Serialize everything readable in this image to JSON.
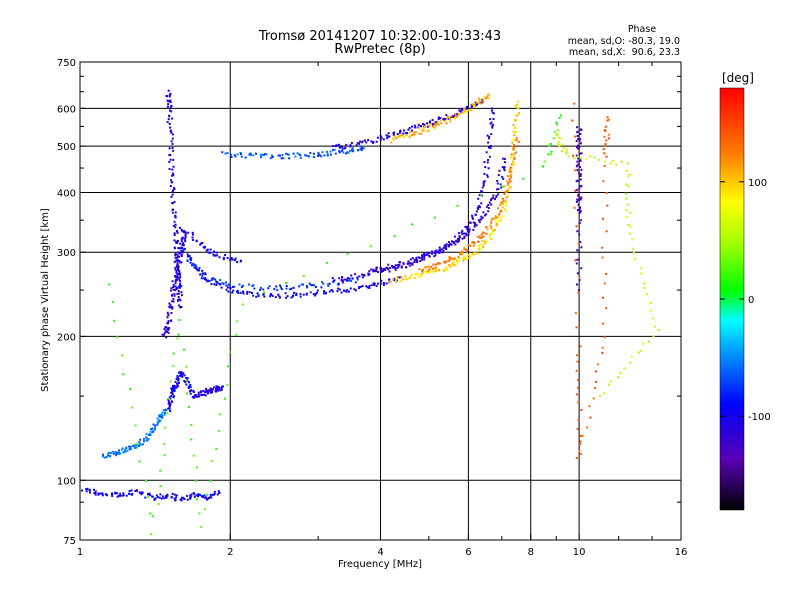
{
  "chart_data": {
    "type": "scatter",
    "title": "Tromsø 20141207 10:32:00-10:33:43",
    "subtitle": "RwPretec (8p)",
    "xlabel": "Frequency [MHz]",
    "ylabel": "Stationary phase Virtual Height [km]",
    "x_scale": "log",
    "y_scale": "log",
    "xlim": [
      1,
      16
    ],
    "ylim": [
      75,
      750
    ],
    "grid": true,
    "x_ticks": [
      1,
      2,
      4,
      6,
      8,
      10,
      16
    ],
    "x_tick_labels": [
      "1",
      "2",
      "4",
      "6",
      "8",
      "10",
      "16"
    ],
    "y_ticks": [
      75,
      100,
      200,
      300,
      400,
      500,
      600,
      750
    ],
    "y_tick_labels": [
      "75",
      "100",
      "200",
      "300",
      "400",
      "500",
      "600",
      "750"
    ],
    "phase_stats": {
      "heading": "Phase",
      "line_o": "mean, sd,O: -80.3, 19.0",
      "line_x": "mean, sd,X:  90.6, 23.3"
    },
    "colorbar": {
      "label": "[deg]",
      "range": [
        -180,
        180
      ],
      "ticks": [
        100,
        0,
        -100
      ],
      "tick_labels": [
        "100",
        "0",
        "-100"
      ],
      "colormap": "rainbow"
    },
    "traces": [
      {
        "x": [
          1.5,
          1.51,
          1.52,
          1.53,
          1.54,
          1.55,
          1.56,
          1.57,
          1.58,
          1.59
        ],
        "y": [
          650,
          600,
          520,
          440,
          380,
          330,
          300,
          270,
          250,
          230
        ],
        "phase": -105
      },
      {
        "x": [
          1.48,
          1.5,
          1.52,
          1.54,
          1.56,
          1.58,
          1.6,
          1.62
        ],
        "y": [
          200,
          210,
          230,
          250,
          270,
          290,
          310,
          330
        ],
        "phase": -110
      },
      {
        "x": [
          1.6,
          1.7,
          1.8,
          2.0,
          2.2,
          2.5,
          2.8,
          3.2,
          3.6,
          4.0,
          4.4
        ],
        "y": [
          310,
          280,
          262,
          250,
          245,
          243,
          245,
          248,
          252,
          258,
          266
        ],
        "phase": -95
      },
      {
        "x": [
          1.65,
          1.8,
          2.0,
          2.4,
          2.8,
          3.2,
          3.6
        ],
        "y": [
          290,
          265,
          255,
          252,
          254,
          258,
          263
        ],
        "phase": -75
      },
      {
        "x": [
          1.6,
          1.75,
          1.9,
          2.1
        ],
        "y": [
          340,
          310,
          295,
          288
        ],
        "phase": -100
      },
      {
        "x": [
          1.95,
          2.2,
          2.5,
          2.8,
          3.1,
          3.4,
          3.7
        ],
        "y": [
          480,
          478,
          476,
          478,
          482,
          488,
          495
        ],
        "phase": -65
      },
      {
        "x": [
          3.2,
          3.6,
          4.0,
          4.4,
          4.8,
          5.2,
          5.6,
          6.0,
          6.4
        ],
        "y": [
          495,
          505,
          520,
          535,
          550,
          565,
          580,
          600,
          625
        ],
        "phase": -105
      },
      {
        "x": [
          4.2,
          4.6,
          5.0,
          5.4,
          5.8,
          6.2,
          6.6
        ],
        "y": [
          515,
          530,
          545,
          565,
          585,
          610,
          640
        ],
        "phase": 105
      },
      {
        "x": [
          3.2,
          3.6,
          4.0,
          4.4,
          4.8,
          5.2,
          5.6,
          6.0,
          6.3,
          6.5,
          6.6,
          6.7
        ],
        "y": [
          262,
          268,
          274,
          280,
          290,
          300,
          318,
          340,
          375,
          430,
          520,
          600
        ],
        "phase": -110
      },
      {
        "x": [
          4.2,
          4.6,
          5.0,
          5.4,
          5.8,
          6.2,
          6.6,
          7.0,
          7.2,
          7.35,
          7.45,
          7.55
        ],
        "y": [
          262,
          266,
          272,
          278,
          288,
          300,
          322,
          355,
          400,
          460,
          540,
          620
        ],
        "phase": 95
      },
      {
        "x": [
          4.8,
          5.2,
          5.6,
          6.0,
          6.4,
          6.8,
          7.1,
          7.3,
          7.5
        ],
        "y": [
          275,
          282,
          292,
          305,
          325,
          355,
          395,
          445,
          520
        ],
        "phase": 125
      },
      {
        "x": [
          3.8,
          4.2,
          4.6,
          5.0,
          5.4,
          5.8,
          6.2,
          6.6,
          6.9,
          7.1
        ],
        "y": [
          275,
          280,
          288,
          296,
          306,
          320,
          340,
          370,
          410,
          470
        ],
        "phase": -115
      },
      {
        "x": [
          1.5,
          1.52,
          1.54,
          1.56,
          1.6,
          1.65,
          1.7
        ],
        "y": [
          140,
          148,
          155,
          160,
          168,
          158,
          150
        ],
        "phase": -100
      },
      {
        "x": [
          1.7,
          1.76,
          1.82,
          1.88,
          1.92
        ],
        "y": [
          150,
          152,
          154,
          155,
          156
        ],
        "phase": -110
      },
      {
        "x": [
          1.12,
          1.18,
          1.24,
          1.3,
          1.36,
          1.4,
          1.44,
          1.48
        ],
        "y": [
          112,
          114,
          116,
          118,
          122,
          128,
          134,
          140
        ],
        "phase": -55
      },
      {
        "x": [
          1.02,
          1.1,
          1.2,
          1.3,
          1.4,
          1.5,
          1.6,
          1.7,
          1.8,
          1.9
        ],
        "y": [
          95,
          94,
          93,
          95,
          92,
          93,
          91,
          93,
          92,
          94
        ],
        "phase": -100
      },
      {
        "x": [
          10.0,
          10.0,
          10.0,
          10.0,
          10.0,
          10.0
        ],
        "y": [
          550,
          500,
          450,
          400,
          360,
          250
        ],
        "phase": -130
      },
      {
        "x": [
          9.7,
          10.0,
          10.0,
          11.2,
          11.3,
          11.4
        ],
        "y": [
          620,
          190,
          110,
          200,
          480,
          575
        ],
        "phase": 140
      },
      {
        "x": [
          9.0,
          9.4,
          12.5,
          12.6,
          14.3,
          11.0
        ],
        "y": [
          530,
          480,
          460,
          330,
          205,
          150
        ],
        "phase": 60
      },
      {
        "x": [
          1.15,
          1.4,
          1.58,
          1.75,
          2.1,
          8.5,
          9.2
        ],
        "y": [
          255,
          78,
          215,
          80,
          235,
          450,
          580
        ],
        "phase": 20
      }
    ]
  }
}
